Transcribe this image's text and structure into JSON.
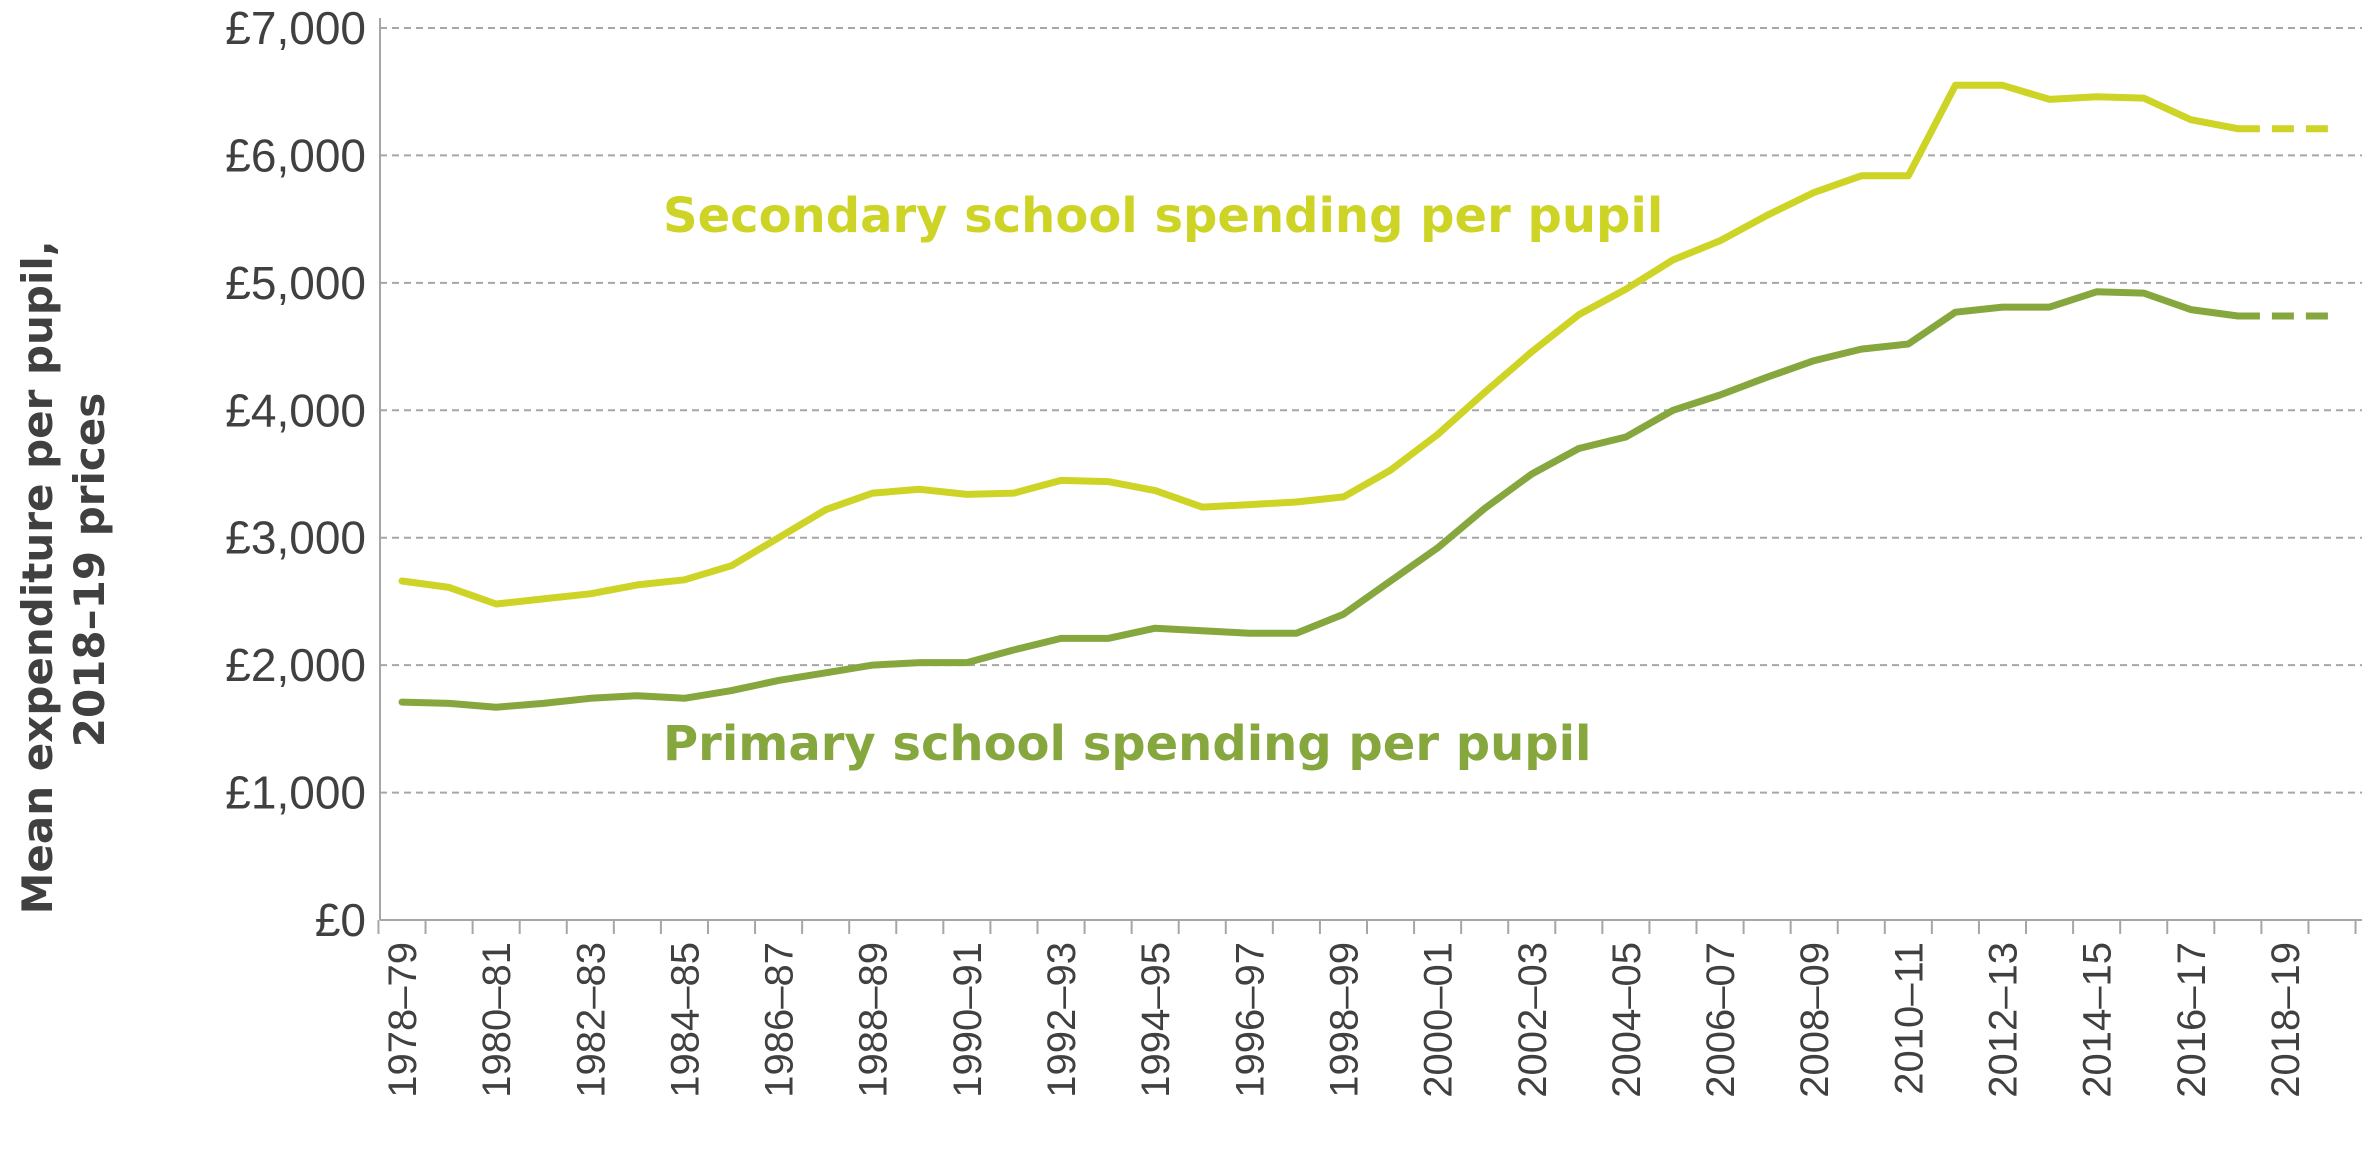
{
  "chart_data": {
    "type": "line",
    "title": "",
    "xlabel": "",
    "ylabel_lines": [
      "Mean expenditure per pupil,",
      "2018–19 prices"
    ],
    "ylim": [
      0,
      7000
    ],
    "y_ticks": [
      {
        "value": 0,
        "label": "£0"
      },
      {
        "value": 1000,
        "label": "£1,000"
      },
      {
        "value": 2000,
        "label": "£2,000"
      },
      {
        "value": 3000,
        "label": "£3,000"
      },
      {
        "value": 4000,
        "label": "£4,000"
      },
      {
        "value": 5000,
        "label": "£5,000"
      },
      {
        "value": 6000,
        "label": "£6,000"
      },
      {
        "value": 7000,
        "label": "£7,000"
      }
    ],
    "grid": true,
    "categories": [
      "1978–79",
      "1979–80",
      "1980–81",
      "1981–82",
      "1982–83",
      "1983–84",
      "1984–85",
      "1985–86",
      "1986–87",
      "1987–88",
      "1988–89",
      "1989–90",
      "1990–91",
      "1991–92",
      "1992–93",
      "1993–94",
      "1994–95",
      "1995–96",
      "1996–97",
      "1997–98",
      "1998–99",
      "1999–00",
      "2000–01",
      "2001–02",
      "2002–03",
      "2003–04",
      "2004–05",
      "2005–06",
      "2006–07",
      "2007–08",
      "2008–09",
      "2009–10",
      "2010–11",
      "2011–12",
      "2012–13",
      "2013–14",
      "2014–15",
      "2015–16",
      "2016–17",
      "2017–18",
      "2018–19",
      "2019–20"
    ],
    "x_tick_labels": [
      "1978–79",
      "1980–81",
      "1982–83",
      "1984–85",
      "1986–87",
      "1988–89",
      "1990–91",
      "1992–93",
      "1994–95",
      "1996–97",
      "1998–99",
      "2000–01",
      "2002–03",
      "2004–05",
      "2006–07",
      "2008–09",
      "2010–11",
      "2012–13",
      "2014–15",
      "2016–17",
      "2018–19"
    ],
    "series": [
      {
        "name": "Secondary school spending per pupil",
        "color": "#cdd426",
        "values": [
          2660,
          2610,
          2480,
          2520,
          2560,
          2630,
          2670,
          2780,
          3000,
          3220,
          3350,
          3380,
          3340,
          3350,
          3450,
          3440,
          3370,
          3240,
          3260,
          3280,
          3320,
          3530,
          3810,
          4140,
          4460,
          4750,
          4950,
          5180,
          5330,
          5530,
          5710,
          5840,
          5840,
          6550,
          6550,
          6440,
          6460,
          6450,
          6280,
          6210,
          6210,
          6210
        ],
        "dashed_from_index": 39
      },
      {
        "name": "Primary school spending per pupil",
        "color": "#86a63e",
        "values": [
          1710,
          1700,
          1670,
          1700,
          1740,
          1760,
          1740,
          1800,
          1880,
          1940,
          2000,
          2020,
          2020,
          2120,
          2210,
          2210,
          2290,
          2270,
          2250,
          2250,
          2400,
          2660,
          2920,
          3230,
          3500,
          3700,
          3790,
          4000,
          4120,
          4260,
          4390,
          4480,
          4520,
          4770,
          4810,
          4810,
          4930,
          4920,
          4790,
          4740,
          4740,
          4740
        ],
        "dashed_from_index": 39
      }
    ],
    "annotations": [
      {
        "text": "Secondary school spending per pupil",
        "series_index": 0
      },
      {
        "text": "Primary school spending per pupil",
        "series_index": 1
      }
    ]
  }
}
